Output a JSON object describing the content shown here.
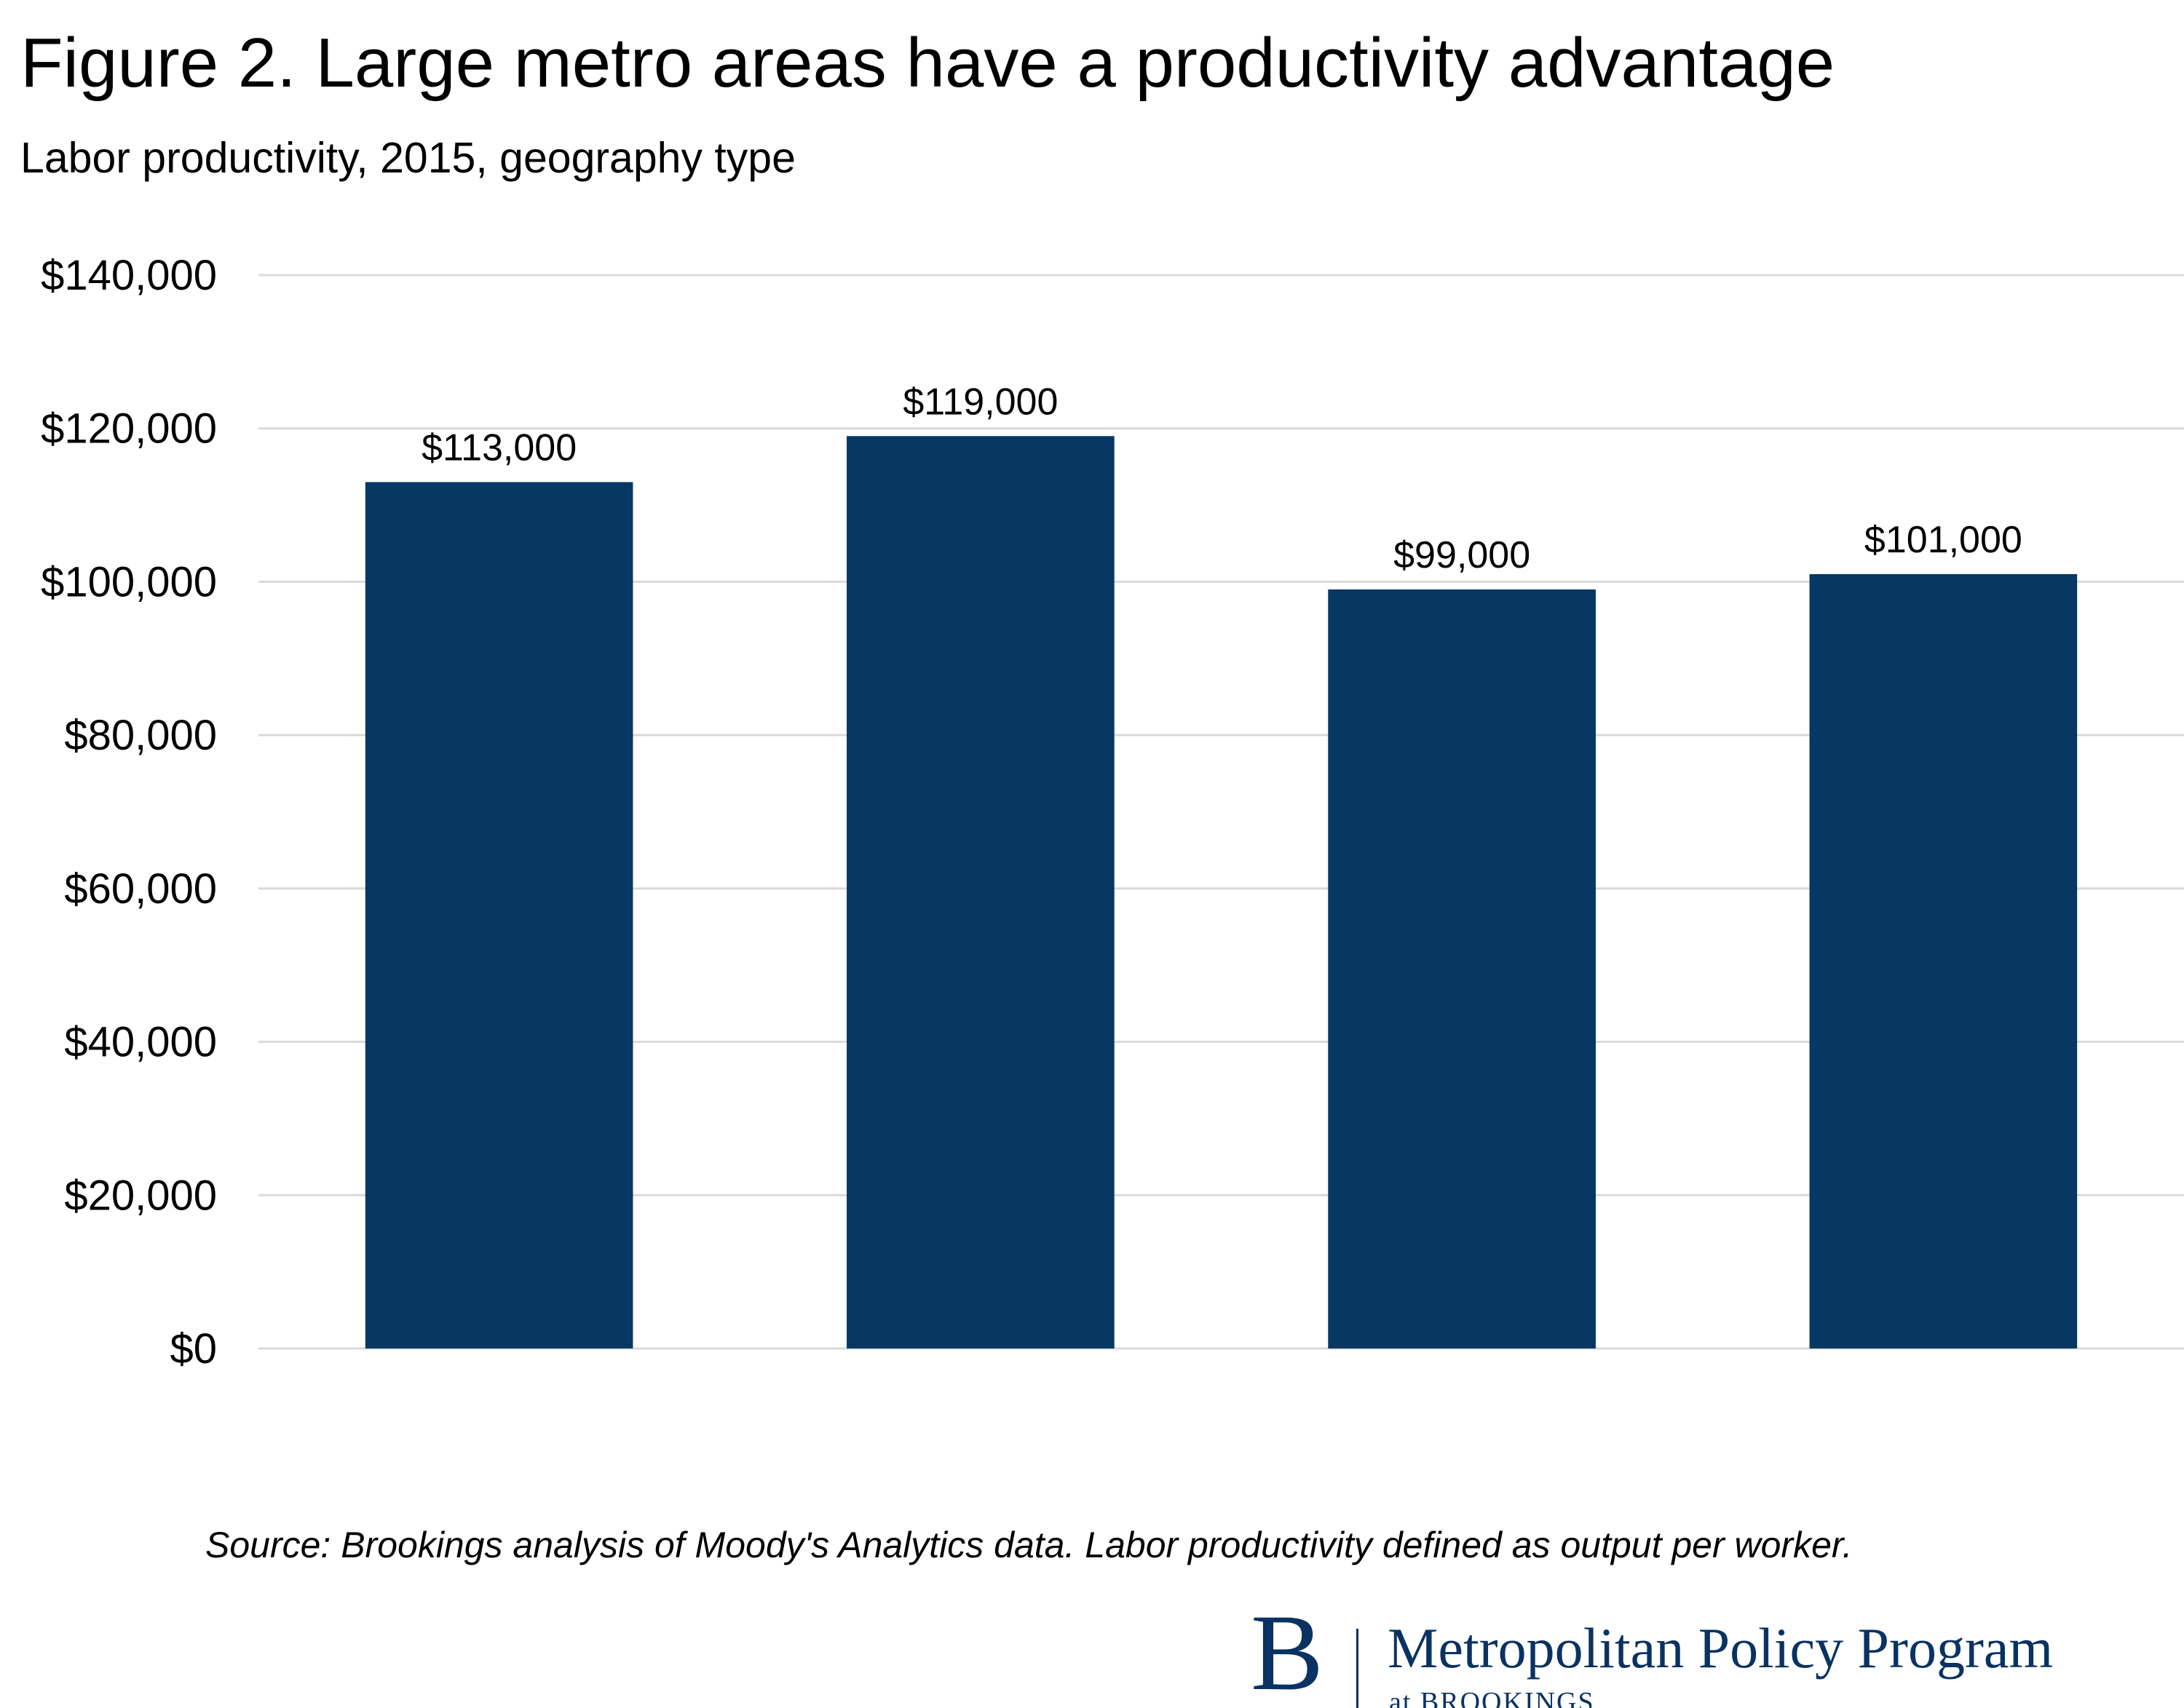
{
  "header": {
    "title": "Figure 2. Large metro areas have a productivity advantage",
    "subtitle": "Labor productivity, 2015, geography type"
  },
  "footer": {
    "source": "Source: Brookings analysis of Moody's Analytics data. Labor productivity defined as output per worker."
  },
  "logo": {
    "mark": "B",
    "name": "Metropolitan Policy Program",
    "sub": "at BROOKINGS"
  },
  "colors": {
    "bar": "#073763",
    "grid": "#d9d9d9",
    "brand": "#0a3263"
  },
  "chart_data": {
    "type": "bar",
    "title": "Figure 2. Large metro areas have a productivity advantage",
    "subtitle": "Labor productivity, 2015, geography type",
    "categories": [
      "",
      "",
      "",
      ""
    ],
    "values": [
      113000,
      119000,
      99000,
      101000
    ],
    "data_labels": [
      "$113,000",
      "$119,000",
      "$99,000",
      "$101,000"
    ],
    "ylim": [
      0,
      140000
    ],
    "yticks": [
      0,
      20000,
      40000,
      60000,
      80000,
      100000,
      120000,
      140000
    ],
    "ytick_labels": [
      "$0",
      "$20,000",
      "$40,000",
      "$60,000",
      "$80,000",
      "$100,000",
      "$120,000",
      "$140,000"
    ],
    "xlabel": "",
    "ylabel": "",
    "grid": true,
    "legend": false
  }
}
